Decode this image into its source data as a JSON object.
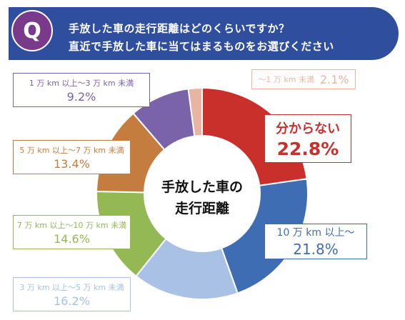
{
  "question": {
    "badge": "Q",
    "line1": "手放した車の走行距離はどのくらいですか？",
    "line2": "直近で手放した車に当てはまるものをお選びください"
  },
  "center_label": {
    "line1": "手放した車の",
    "line2": "走行距離"
  },
  "colors": {
    "header_bg": "#2f4f9e",
    "badge_bg": "#7a3a8c"
  },
  "chart_data": {
    "type": "pie",
    "donut": true,
    "start": "12 o'clock, clockwise",
    "slices": [
      {
        "label": "分からない",
        "value": 22.8,
        "pct_text": "22.8%",
        "color": "#c9302c",
        "label_side": "right"
      },
      {
        "label": "10 万 km 以上～",
        "value": 21.8,
        "pct_text": "21.8%",
        "color": "#3f6db3",
        "label_side": "right"
      },
      {
        "label": "3 万 km 以上～5 万 km 未満",
        "value": 16.2,
        "pct_text": "16.2%",
        "color": "#a9c1e4",
        "label_side": "left"
      },
      {
        "label": "7 万 km 以上～10 万 km 未満",
        "value": 14.6,
        "pct_text": "14.6%",
        "color": "#94b854",
        "label_side": "left"
      },
      {
        "label": "5 万 km 以上～7 万 km 未満",
        "value": 13.4,
        "pct_text": "13.4%",
        "color": "#c57d3f",
        "label_side": "left"
      },
      {
        "label": "1 万 km 以上～3 万 km 未満",
        "value": 9.2,
        "pct_text": "9.2%",
        "color": "#7a63a8",
        "label_side": "left"
      },
      {
        "label": "～1 万 km 未満",
        "value": 2.1,
        "pct_text": "2.1%",
        "color": "#e8b5a4",
        "label_side": "top"
      }
    ]
  }
}
